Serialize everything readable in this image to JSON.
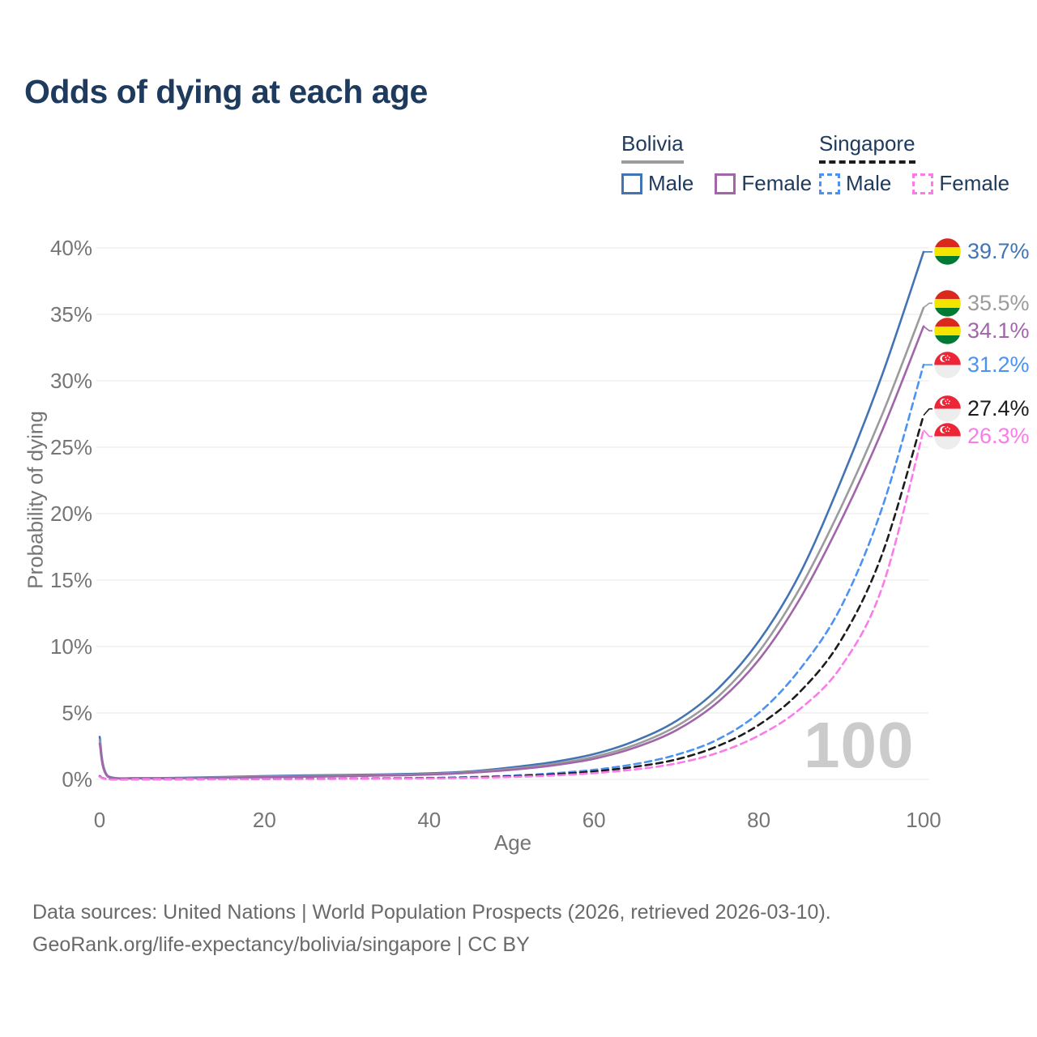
{
  "title": "Odds of dying at each age",
  "colors": {
    "title_text": "#1e3a5c",
    "axis_text": "#757575",
    "grid_line": "#ececec",
    "watermark": "#cbcbcb",
    "footer_text": "#696969",
    "bolivia_male": "#4274b4",
    "bolivia_both": "#9b9b9b",
    "bolivia_female": "#a066a8",
    "singapore_male": "#4b92f2",
    "singapore_both": "#1c1c1c",
    "singapore_female": "#fb7ce8"
  },
  "legend": {
    "groups": [
      {
        "country": "Bolivia",
        "sample_series": "bolivia_both",
        "items": [
          {
            "label": "Male",
            "series": "bolivia_male"
          },
          {
            "label": "Female",
            "series": "bolivia_female"
          }
        ]
      },
      {
        "country": "Singapore",
        "sample_series": "singapore_both",
        "items": [
          {
            "label": "Male",
            "series": "singapore_male"
          },
          {
            "label": "Female",
            "series": "singapore_female"
          }
        ]
      }
    ]
  },
  "chart_data": {
    "type": "line",
    "title": "Odds of dying at each age",
    "xlabel": "Age",
    "ylabel": "Probability of dying",
    "xlim": [
      0,
      100
    ],
    "ylim": [
      0,
      40
    ],
    "grid": "horizontal gridlines only",
    "legend_position": "top-right",
    "watermark": "100",
    "x_ticks": [
      {
        "v": 0,
        "label": "0"
      },
      {
        "v": 20,
        "label": "20"
      },
      {
        "v": 40,
        "label": "40"
      },
      {
        "v": 60,
        "label": "60"
      },
      {
        "v": 80,
        "label": "80"
      },
      {
        "v": 100,
        "label": "100"
      }
    ],
    "y_ticks": [
      {
        "v": 0,
        "label": "0%"
      },
      {
        "v": 5,
        "label": "5%"
      },
      {
        "v": 10,
        "label": "10%"
      },
      {
        "v": 15,
        "label": "15%"
      },
      {
        "v": 20,
        "label": "20%"
      },
      {
        "v": 25,
        "label": "25%"
      },
      {
        "v": 30,
        "label": "30%"
      },
      {
        "v": 35,
        "label": "35%"
      },
      {
        "v": 40,
        "label": "40%"
      }
    ],
    "ages": [
      0,
      1,
      5,
      10,
      15,
      20,
      25,
      30,
      35,
      40,
      45,
      50,
      55,
      60,
      65,
      70,
      75,
      80,
      85,
      90,
      95,
      100
    ],
    "series": [
      {
        "id": "bolivia_male",
        "name": "Bolivia Male",
        "country": "Bolivia",
        "sex": "Male",
        "color": "#4274b4",
        "dashed": false,
        "flag": "bolivia-flag-icon",
        "end_label": "39.7%",
        "values": [
          3.2,
          0.25,
          0.1,
          0.12,
          0.18,
          0.25,
          0.3,
          0.33,
          0.38,
          0.45,
          0.6,
          0.9,
          1.3,
          1.9,
          2.9,
          4.4,
          6.8,
          10.4,
          15.5,
          22.5,
          30.5,
          39.7
        ]
      },
      {
        "id": "bolivia_both",
        "name": "Bolivia Both sexes",
        "country": "Bolivia",
        "sex": "Both",
        "color": "#9b9b9b",
        "dashed": false,
        "flag": "bolivia-flag-icon",
        "end_label": "35.5%",
        "values": [
          2.95,
          0.22,
          0.09,
          0.1,
          0.15,
          0.2,
          0.25,
          0.28,
          0.33,
          0.4,
          0.55,
          0.8,
          1.15,
          1.7,
          2.6,
          4.0,
          6.2,
          9.6,
          14.4,
          20.5,
          27.5,
          35.5
        ]
      },
      {
        "id": "bolivia_female",
        "name": "Bolivia Female",
        "country": "Bolivia",
        "sex": "Female",
        "color": "#a066a8",
        "dashed": false,
        "flag": "bolivia-flag-icon",
        "end_label": "34.1%",
        "values": [
          2.7,
          0.2,
          0.08,
          0.09,
          0.12,
          0.16,
          0.2,
          0.24,
          0.29,
          0.36,
          0.5,
          0.72,
          1.05,
          1.55,
          2.4,
          3.7,
          5.8,
          9.0,
          13.6,
          19.5,
          26.3,
          34.1
        ]
      },
      {
        "id": "singapore_male",
        "name": "Singapore Male",
        "country": "Singapore",
        "sex": "Male",
        "color": "#4b92f2",
        "dashed": true,
        "flag": "singapore-flag-icon",
        "end_label": "31.2%",
        "values": [
          0.25,
          0.02,
          0.01,
          0.01,
          0.02,
          0.04,
          0.05,
          0.06,
          0.08,
          0.11,
          0.17,
          0.28,
          0.45,
          0.72,
          1.15,
          1.85,
          3.0,
          5.0,
          8.3,
          13.0,
          20.5,
          31.2
        ]
      },
      {
        "id": "singapore_both",
        "name": "Singapore Both sexes",
        "country": "Singapore",
        "sex": "Both",
        "color": "#1c1c1c",
        "dashed": true,
        "flag": "singapore-flag-icon",
        "end_label": "27.4%",
        "values": [
          0.22,
          0.02,
          0.01,
          0.01,
          0.02,
          0.03,
          0.04,
          0.05,
          0.07,
          0.09,
          0.14,
          0.23,
          0.37,
          0.6,
          0.95,
          1.5,
          2.5,
          4.1,
          6.6,
          10.5,
          17.0,
          27.4
        ]
      },
      {
        "id": "singapore_female",
        "name": "Singapore Female",
        "country": "Singapore",
        "sex": "Female",
        "color": "#fb7ce8",
        "dashed": true,
        "flag": "singapore-flag-icon",
        "end_label": "26.3%",
        "values": [
          0.2,
          0.015,
          0.01,
          0.01,
          0.015,
          0.025,
          0.03,
          0.04,
          0.05,
          0.07,
          0.11,
          0.18,
          0.29,
          0.47,
          0.75,
          1.2,
          2.0,
          3.3,
          5.3,
          8.5,
          14.5,
          26.3
        ]
      }
    ]
  },
  "footer": {
    "line1": "Data sources: United Nations | World Population Prospects (2026, retrieved 2026-03-10).",
    "line2": "GeoRank.org/life-expectancy/bolivia/singapore | CC BY"
  }
}
